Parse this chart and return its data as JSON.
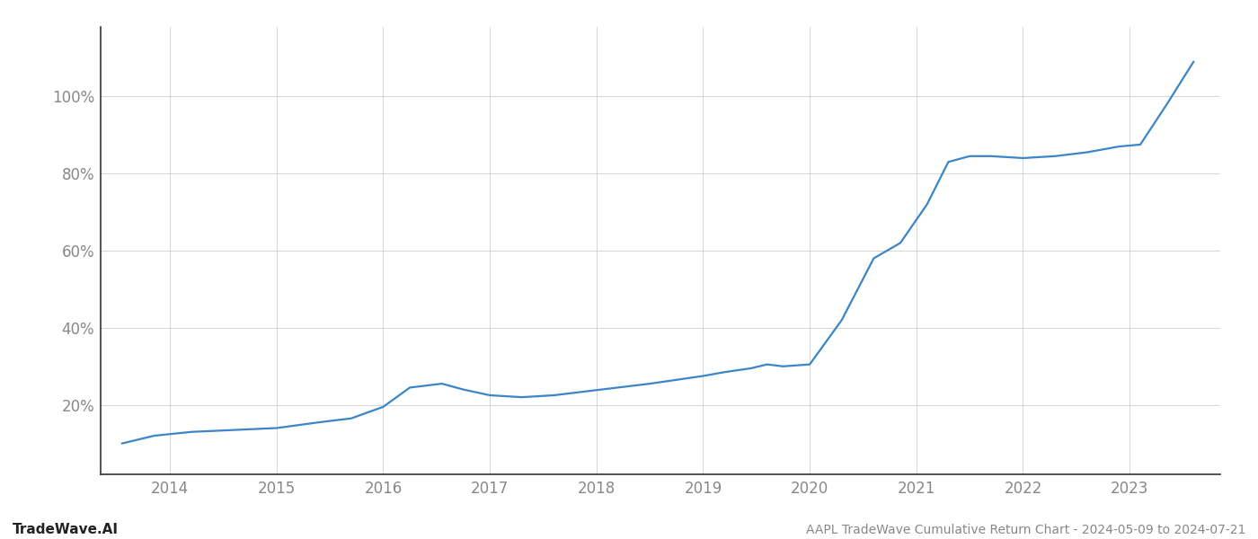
{
  "title": "AAPL TradeWave Cumulative Return Chart - 2024-05-09 to 2024-07-21",
  "watermark": "TradeWave.AI",
  "line_color": "#3a86c8",
  "background_color": "#ffffff",
  "grid_color": "#d0d0d0",
  "spine_color": "#333333",
  "label_color": "#888888",
  "footer_left_color": "#222222",
  "footer_right_color": "#888888",
  "x_values": [
    2013.55,
    2013.85,
    2014.2,
    2014.6,
    2015.0,
    2015.4,
    2015.7,
    2016.0,
    2016.25,
    2016.55,
    2016.75,
    2017.0,
    2017.3,
    2017.6,
    2017.9,
    2018.2,
    2018.5,
    2018.75,
    2019.0,
    2019.2,
    2019.45,
    2019.6,
    2019.75,
    2020.0,
    2020.3,
    2020.6,
    2020.85,
    2021.1,
    2021.3,
    2021.5,
    2021.7,
    2022.0,
    2022.3,
    2022.6,
    2022.9,
    2023.1,
    2023.35,
    2023.6
  ],
  "y_values": [
    0.1,
    0.12,
    0.13,
    0.135,
    0.14,
    0.155,
    0.165,
    0.195,
    0.245,
    0.255,
    0.24,
    0.225,
    0.22,
    0.225,
    0.235,
    0.245,
    0.255,
    0.265,
    0.275,
    0.285,
    0.295,
    0.305,
    0.3,
    0.305,
    0.42,
    0.58,
    0.62,
    0.72,
    0.83,
    0.845,
    0.845,
    0.84,
    0.845,
    0.855,
    0.87,
    0.875,
    0.98,
    1.09
  ],
  "xticks": [
    2014,
    2015,
    2016,
    2017,
    2018,
    2019,
    2020,
    2021,
    2022,
    2023
  ],
  "xlim": [
    2013.35,
    2023.85
  ],
  "ylim": [
    0.02,
    1.18
  ],
  "yticks": [
    0.2,
    0.4,
    0.6,
    0.8,
    1.0
  ],
  "ytick_labels": [
    "20%",
    "40%",
    "60%",
    "80%",
    "100%"
  ],
  "line_width": 1.6,
  "figsize": [
    14.0,
    6.0
  ],
  "dpi": 100
}
